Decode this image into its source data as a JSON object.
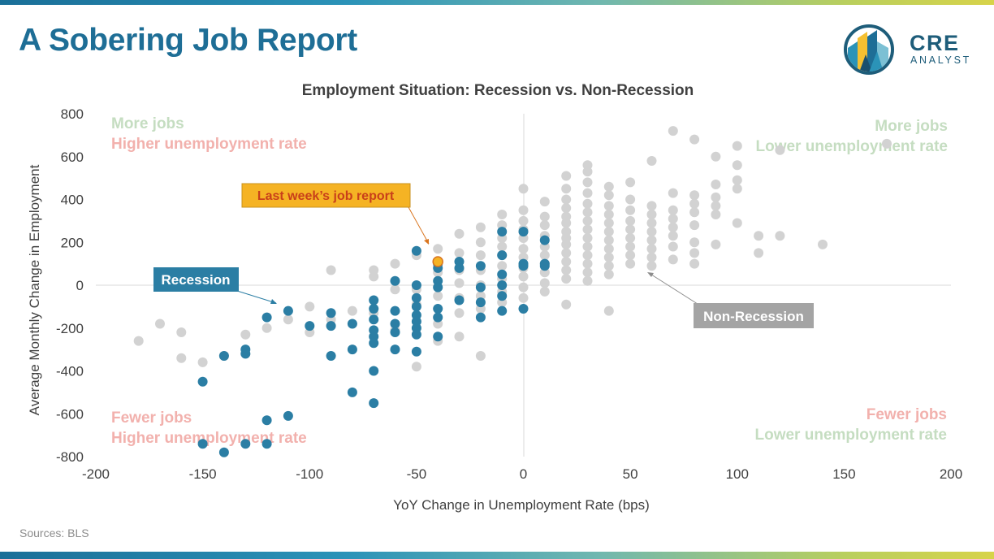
{
  "header": {
    "title": "A Sobering Job Report",
    "logo_text_1": "CRE",
    "logo_text_2": "ANALYST"
  },
  "footer": {
    "source": "Sources: BLS"
  },
  "colors": {
    "recession": "#2b7ea4",
    "non_recession": "#d2d2d2",
    "highlight": "#f5b324",
    "highlight_border": "#d9751f",
    "quadrant_green": "#c5ddc1",
    "quadrant_red": "#f2b1ad",
    "callout_recession_bg": "#2b7ea4",
    "callout_non_recession_bg": "#a4a4a4",
    "callout_highlight_bg": "#f5b324",
    "callout_highlight_text": "#c9401a"
  },
  "quadrant_labels": {
    "top_left_1": "More jobs",
    "top_left_2": "Higher unemployment rate",
    "top_right_1": "More jobs",
    "top_right_2": "Lower unemployment rate",
    "bottom_left_1": "Fewer jobs",
    "bottom_left_2": "Higher unemployment rate",
    "bottom_right_1": "Fewer jobs",
    "bottom_right_2": "Lower unemployment rate"
  },
  "chart_data": {
    "type": "scatter",
    "title": "Employment Situation: Recession vs. Non-Recession",
    "xlabel": "YoY Change in Unemployment Rate (bps)",
    "ylabel": "Average Monthly Change in Employment",
    "xlim": [
      -200,
      200
    ],
    "ylim": [
      -800,
      800
    ],
    "x_ticks": [
      "-200",
      "-150",
      "-100",
      "-50",
      "0",
      "50",
      "100",
      "150",
      "200"
    ],
    "y_ticks": [
      "800",
      "600",
      "400",
      "200",
      "0",
      "-200",
      "-400",
      "-600",
      "-800"
    ],
    "grid": false,
    "annotations": {
      "recession": "Recession",
      "non_recession": "Non-Recession",
      "last_report": "Last week’s job report"
    },
    "series": [
      {
        "name": "Non-Recession",
        "points": [
          [
            -180,
            -260
          ],
          [
            -170,
            -180
          ],
          [
            -160,
            -220
          ],
          [
            -160,
            -340
          ],
          [
            -150,
            -360
          ],
          [
            -140,
            -330
          ],
          [
            -130,
            -230
          ],
          [
            -130,
            -320
          ],
          [
            -120,
            -200
          ],
          [
            -110,
            -160
          ],
          [
            -100,
            -100
          ],
          [
            -100,
            -220
          ],
          [
            -90,
            70
          ],
          [
            -90,
            -160
          ],
          [
            -80,
            -120
          ],
          [
            -70,
            70
          ],
          [
            -70,
            40
          ],
          [
            -70,
            -130
          ],
          [
            -60,
            100
          ],
          [
            -60,
            -20
          ],
          [
            -60,
            -210
          ],
          [
            -50,
            140
          ],
          [
            -50,
            -20
          ],
          [
            -50,
            -90
          ],
          [
            -50,
            -380
          ],
          [
            -40,
            170
          ],
          [
            -40,
            60
          ],
          [
            -40,
            -50
          ],
          [
            -40,
            -180
          ],
          [
            -40,
            -260
          ],
          [
            -30,
            240
          ],
          [
            -30,
            150
          ],
          [
            -30,
            70
          ],
          [
            -30,
            10
          ],
          [
            -30,
            -60
          ],
          [
            -30,
            -130
          ],
          [
            -30,
            -240
          ],
          [
            -20,
            270
          ],
          [
            -20,
            200
          ],
          [
            -20,
            140
          ],
          [
            -20,
            70
          ],
          [
            -20,
            0
          ],
          [
            -20,
            -50
          ],
          [
            -20,
            -110
          ],
          [
            -20,
            -330
          ],
          [
            -10,
            330
          ],
          [
            -10,
            280
          ],
          [
            -10,
            220
          ],
          [
            -10,
            180
          ],
          [
            -10,
            140
          ],
          [
            -10,
            90
          ],
          [
            -10,
            30
          ],
          [
            -10,
            -30
          ],
          [
            -10,
            -80
          ],
          [
            0,
            450
          ],
          [
            0,
            350
          ],
          [
            0,
            300
          ],
          [
            0,
            260
          ],
          [
            0,
            220
          ],
          [
            0,
            170
          ],
          [
            0,
            130
          ],
          [
            0,
            80
          ],
          [
            0,
            40
          ],
          [
            0,
            -10
          ],
          [
            0,
            -60
          ],
          [
            10,
            390
          ],
          [
            10,
            320
          ],
          [
            10,
            280
          ],
          [
            10,
            230
          ],
          [
            10,
            180
          ],
          [
            10,
            140
          ],
          [
            10,
            100
          ],
          [
            10,
            60
          ],
          [
            10,
            10
          ],
          [
            10,
            -30
          ],
          [
            20,
            510
          ],
          [
            20,
            450
          ],
          [
            20,
            400
          ],
          [
            20,
            360
          ],
          [
            20,
            320
          ],
          [
            20,
            290
          ],
          [
            20,
            250
          ],
          [
            20,
            220
          ],
          [
            20,
            190
          ],
          [
            20,
            150
          ],
          [
            20,
            110
          ],
          [
            20,
            70
          ],
          [
            20,
            30
          ],
          [
            20,
            -90
          ],
          [
            30,
            560
          ],
          [
            30,
            530
          ],
          [
            30,
            480
          ],
          [
            30,
            430
          ],
          [
            30,
            380
          ],
          [
            30,
            340
          ],
          [
            30,
            300
          ],
          [
            30,
            260
          ],
          [
            30,
            220
          ],
          [
            30,
            180
          ],
          [
            30,
            140
          ],
          [
            30,
            100
          ],
          [
            30,
            60
          ],
          [
            30,
            20
          ],
          [
            40,
            460
          ],
          [
            40,
            420
          ],
          [
            40,
            370
          ],
          [
            40,
            330
          ],
          [
            40,
            290
          ],
          [
            40,
            250
          ],
          [
            40,
            210
          ],
          [
            40,
            170
          ],
          [
            40,
            130
          ],
          [
            40,
            90
          ],
          [
            40,
            50
          ],
          [
            40,
            -120
          ],
          [
            50,
            480
          ],
          [
            50,
            400
          ],
          [
            50,
            350
          ],
          [
            50,
            300
          ],
          [
            50,
            260
          ],
          [
            50,
            220
          ],
          [
            50,
            180
          ],
          [
            50,
            140
          ],
          [
            50,
            100
          ],
          [
            60,
            580
          ],
          [
            60,
            370
          ],
          [
            60,
            330
          ],
          [
            60,
            290
          ],
          [
            60,
            250
          ],
          [
            60,
            210
          ],
          [
            60,
            170
          ],
          [
            60,
            130
          ],
          [
            60,
            90
          ],
          [
            70,
            720
          ],
          [
            70,
            430
          ],
          [
            70,
            350
          ],
          [
            70,
            310
          ],
          [
            70,
            270
          ],
          [
            70,
            230
          ],
          [
            70,
            180
          ],
          [
            70,
            120
          ],
          [
            80,
            680
          ],
          [
            80,
            420
          ],
          [
            80,
            380
          ],
          [
            80,
            340
          ],
          [
            80,
            280
          ],
          [
            80,
            200
          ],
          [
            80,
            150
          ],
          [
            80,
            100
          ],
          [
            90,
            600
          ],
          [
            90,
            470
          ],
          [
            90,
            410
          ],
          [
            90,
            370
          ],
          [
            90,
            330
          ],
          [
            90,
            190
          ],
          [
            100,
            650
          ],
          [
            100,
            560
          ],
          [
            100,
            490
          ],
          [
            100,
            450
          ],
          [
            100,
            290
          ],
          [
            110,
            230
          ],
          [
            110,
            150
          ],
          [
            120,
            630
          ],
          [
            120,
            230
          ],
          [
            140,
            190
          ],
          [
            170,
            660
          ]
        ]
      },
      {
        "name": "Recession",
        "points": [
          [
            -150,
            -450
          ],
          [
            -150,
            -740
          ],
          [
            -140,
            -330
          ],
          [
            -140,
            -780
          ],
          [
            -130,
            -300
          ],
          [
            -130,
            -320
          ],
          [
            -130,
            -740
          ],
          [
            -120,
            -150
          ],
          [
            -120,
            -630
          ],
          [
            -120,
            -740
          ],
          [
            -110,
            -120
          ],
          [
            -110,
            -610
          ],
          [
            -100,
            -190
          ],
          [
            -90,
            -130
          ],
          [
            -90,
            -190
          ],
          [
            -90,
            -330
          ],
          [
            -80,
            -180
          ],
          [
            -80,
            -300
          ],
          [
            -80,
            -500
          ],
          [
            -70,
            -70
          ],
          [
            -70,
            -110
          ],
          [
            -70,
            -160
          ],
          [
            -70,
            -210
          ],
          [
            -70,
            -240
          ],
          [
            -70,
            -270
          ],
          [
            -70,
            -400
          ],
          [
            -70,
            -550
          ],
          [
            -60,
            20
          ],
          [
            -60,
            -120
          ],
          [
            -60,
            -180
          ],
          [
            -60,
            -220
          ],
          [
            -60,
            -300
          ],
          [
            -50,
            160
          ],
          [
            -50,
            0
          ],
          [
            -50,
            -60
          ],
          [
            -50,
            -100
          ],
          [
            -50,
            -140
          ],
          [
            -50,
            -170
          ],
          [
            -50,
            -200
          ],
          [
            -50,
            -230
          ],
          [
            -50,
            -310
          ],
          [
            -40,
            100
          ],
          [
            -40,
            80
          ],
          [
            -40,
            20
          ],
          [
            -40,
            -10
          ],
          [
            -40,
            -110
          ],
          [
            -40,
            -150
          ],
          [
            -40,
            -240
          ],
          [
            -30,
            110
          ],
          [
            -30,
            80
          ],
          [
            -30,
            -70
          ],
          [
            -20,
            90
          ],
          [
            -20,
            -10
          ],
          [
            -20,
            -80
          ],
          [
            -20,
            -150
          ],
          [
            -10,
            250
          ],
          [
            -10,
            140
          ],
          [
            -10,
            50
          ],
          [
            -10,
            0
          ],
          [
            -10,
            -50
          ],
          [
            -10,
            -120
          ],
          [
            0,
            250
          ],
          [
            0,
            100
          ],
          [
            0,
            90
          ],
          [
            0,
            -110
          ],
          [
            10,
            210
          ],
          [
            10,
            100
          ],
          [
            10,
            90
          ]
        ]
      },
      {
        "name": "Last week’s job report",
        "points": [
          [
            -40,
            110
          ]
        ]
      }
    ]
  }
}
